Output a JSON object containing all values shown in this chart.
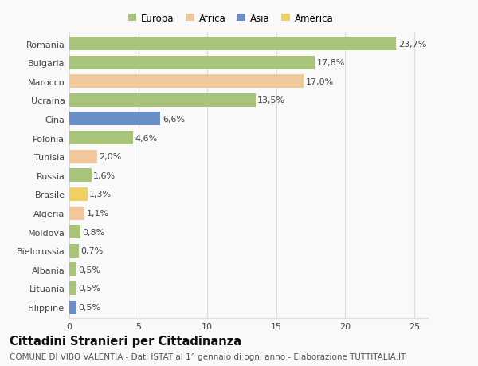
{
  "categories": [
    "Romania",
    "Bulgaria",
    "Marocco",
    "Ucraina",
    "Cina",
    "Polonia",
    "Tunisia",
    "Russia",
    "Brasile",
    "Algeria",
    "Moldova",
    "Bielorussia",
    "Albania",
    "Lituania",
    "Filippine"
  ],
  "values": [
    23.7,
    17.8,
    17.0,
    13.5,
    6.6,
    4.6,
    2.0,
    1.6,
    1.3,
    1.1,
    0.8,
    0.7,
    0.5,
    0.5,
    0.5
  ],
  "labels": [
    "23,7%",
    "17,8%",
    "17,0%",
    "13,5%",
    "6,6%",
    "4,6%",
    "2,0%",
    "1,6%",
    "1,3%",
    "1,1%",
    "0,8%",
    "0,7%",
    "0,5%",
    "0,5%",
    "0,5%"
  ],
  "colors": [
    "#a8c47a",
    "#a8c47a",
    "#f0c89a",
    "#a8c47a",
    "#6a8fc8",
    "#a8c47a",
    "#f0c89a",
    "#a8c47a",
    "#f0d060",
    "#f0c89a",
    "#a8c47a",
    "#a8c47a",
    "#a8c47a",
    "#a8c47a",
    "#6a8fc8"
  ],
  "legend_labels": [
    "Europa",
    "Africa",
    "Asia",
    "America"
  ],
  "legend_colors": [
    "#a8c47a",
    "#f0c89a",
    "#6a8fc8",
    "#f0d060"
  ],
  "title": "Cittadini Stranieri per Cittadinanza",
  "subtitle": "COMUNE DI VIBO VALENTIA - Dati ISTAT al 1° gennaio di ogni anno - Elaborazione TUTTITALIA.IT",
  "xlim": [
    0,
    26
  ],
  "xticks": [
    0,
    5,
    10,
    15,
    20,
    25
  ],
  "background_color": "#f9f9f9",
  "grid_color": "#dddddd",
  "bar_height": 0.72,
  "title_fontsize": 10.5,
  "subtitle_fontsize": 7.5,
  "label_fontsize": 8,
  "tick_fontsize": 8,
  "legend_fontsize": 8.5
}
